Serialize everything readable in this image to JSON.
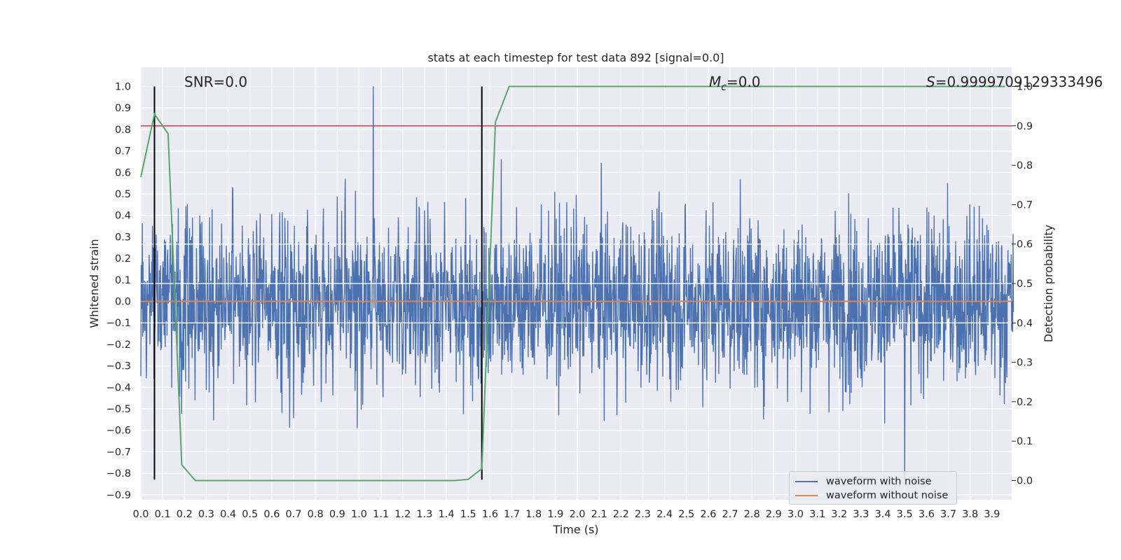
{
  "chart_data": {
    "type": "line",
    "title": "stats at each timestep for test data 892 [signal=0.0]",
    "xlabel": "Time (s)",
    "ylabel": "Whitened strain",
    "y2label": "Detection probability",
    "xlim": [
      0.0,
      4.0
    ],
    "ylim": [
      -0.93,
      1.09
    ],
    "y2lim": [
      -0.05,
      1.05
    ],
    "xticks": [
      "0.0",
      "0.1",
      "0.2",
      "0.3",
      "0.4",
      "0.5",
      "0.6",
      "0.7",
      "0.8",
      "0.9",
      "1.0",
      "1.1",
      "1.2",
      "1.3",
      "1.4",
      "1.5",
      "1.6",
      "1.7",
      "1.8",
      "1.9",
      "2.0",
      "2.1",
      "2.2",
      "2.3",
      "2.4",
      "2.5",
      "2.6",
      "2.7",
      "2.8",
      "2.9",
      "3.0",
      "3.1",
      "3.2",
      "3.3",
      "3.4",
      "3.5",
      "3.6",
      "3.7",
      "3.8",
      "3.9"
    ],
    "yticks": [
      "1.0",
      "0.9",
      "0.8",
      "0.7",
      "0.6",
      "0.5",
      "0.4",
      "0.3",
      "0.2",
      "0.1",
      "0.0",
      "−0.1",
      "−0.2",
      "−0.3",
      "−0.4",
      "−0.5",
      "−0.6",
      "−0.7",
      "−0.8",
      "−0.9"
    ],
    "y2ticks": [
      "1.0",
      "0.9",
      "0.8",
      "0.7",
      "0.6",
      "0.5",
      "0.4",
      "0.3",
      "0.2",
      "0.1",
      "0.0"
    ],
    "annotations": {
      "snr": "SNR=0.0",
      "mc_symbol": "M",
      "mc_sub": "c",
      "mc_value": "=0.0",
      "s_symbol": "S",
      "s_value": "=0.9999709129333496"
    },
    "grid": true,
    "legend_position": "lower-right",
    "series": [
      {
        "name": "waveform with noise",
        "color": "#4c72b0",
        "description_type": "noise",
        "amplitude_envelope": [
          -0.83,
          1.0
        ]
      },
      {
        "name": "waveform without noise",
        "color": "#dd8452",
        "values": [
          0.0,
          0.0
        ]
      },
      {
        "color": "#55a868",
        "axis": "right",
        "x": [
          0.0,
          0.0625,
          0.125,
          0.1875,
          0.25,
          0.3125,
          1.4375,
          1.5,
          1.5625,
          1.625,
          1.6875,
          3.96
        ],
        "y": [
          0.77,
          0.93,
          0.88,
          0.04,
          0.0,
          0.0,
          0.0,
          0.003,
          0.03,
          0.91,
          1.0,
          1.0
        ]
      }
    ],
    "hlines_right_axis": [
      {
        "y": 0.9,
        "color": "#c44e52"
      },
      {
        "y": 0.6,
        "color": "#ffffff"
      },
      {
        "y": 0.5,
        "color": "#ffffff"
      },
      {
        "y": 0.4,
        "color": "#ffffff"
      }
    ],
    "vlines": [
      {
        "x": 0.0625,
        "y_from": -0.83,
        "y_to": 1.0,
        "color": "#000000"
      },
      {
        "x": 1.5625,
        "y_from": -0.83,
        "y_to": 1.0,
        "color": "#000000"
      }
    ],
    "colors": {
      "plot_bg": "#eaeaf2",
      "grid": "#ffffff",
      "noise": "#4c72b0",
      "clean": "#dd8452",
      "prob": "#55a868",
      "threshold": "#c44e52"
    }
  }
}
